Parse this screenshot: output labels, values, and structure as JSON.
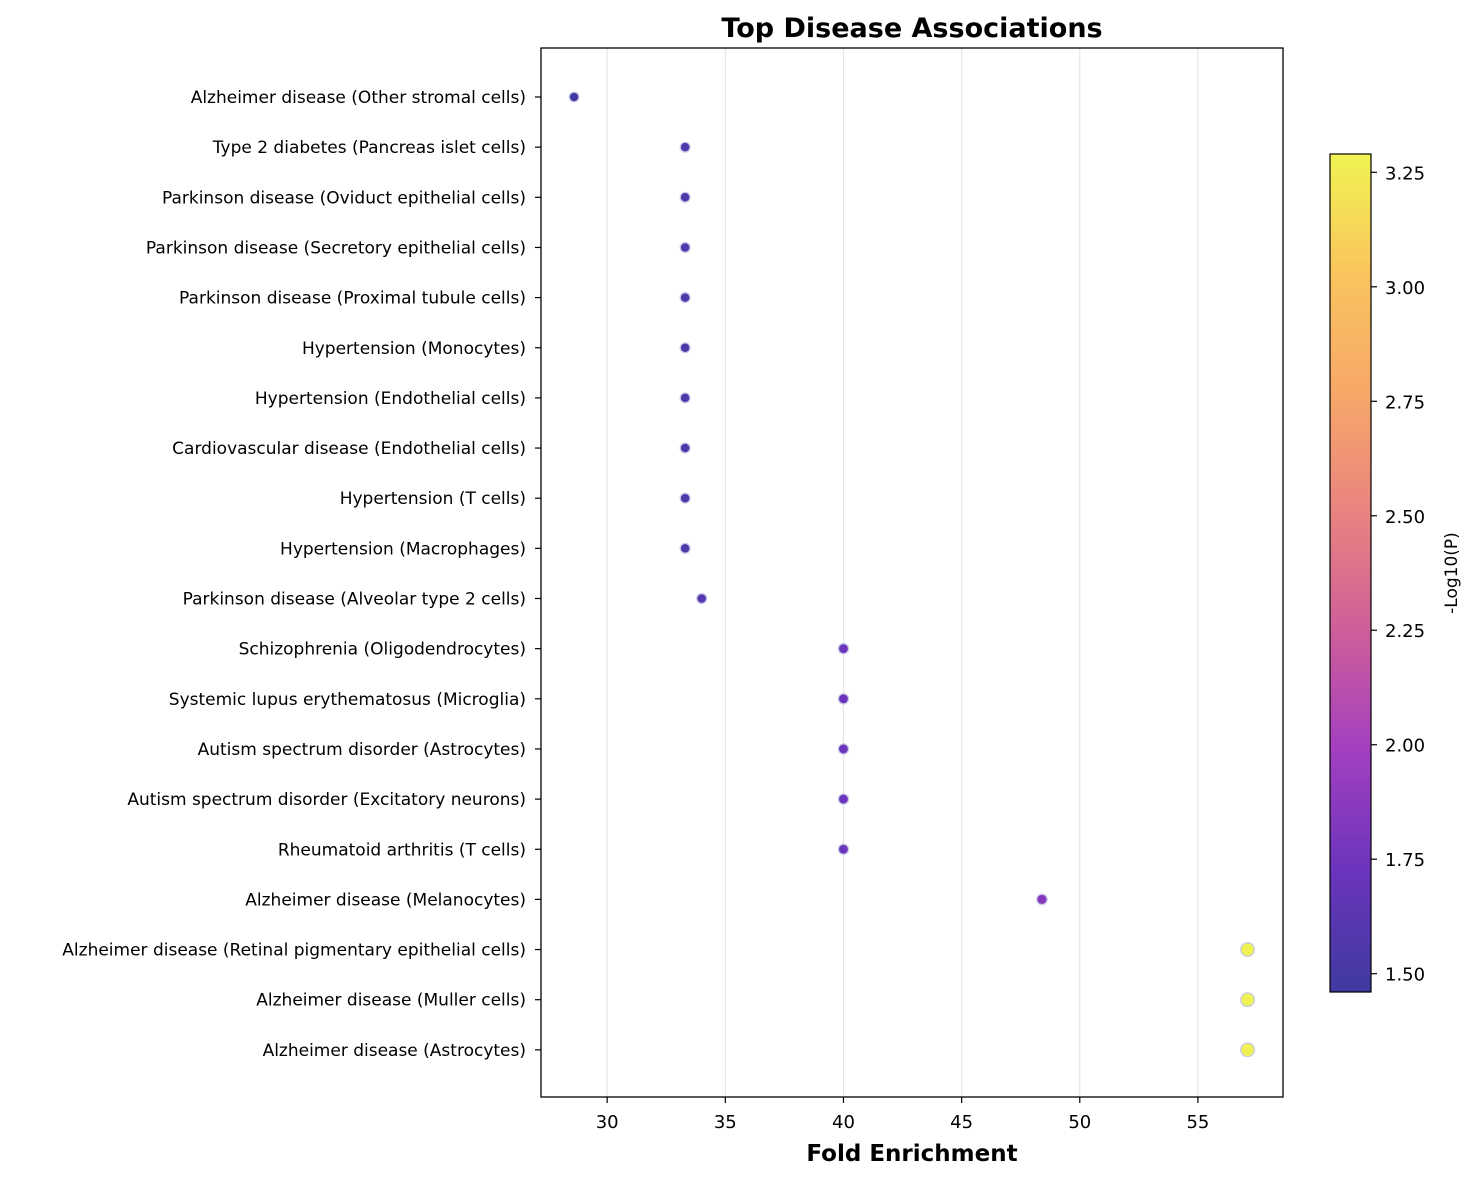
{
  "chart_data": {
    "type": "scatter",
    "title": "Top Disease Associations",
    "xlabel": "Fold Enrichment",
    "ylabel": "",
    "xlim": [
      27.2,
      58.6
    ],
    "xticks": [
      30,
      35,
      40,
      45,
      50,
      55
    ],
    "grid": "vertical",
    "categories": [
      "Alzheimer disease (Other stromal cells)",
      "Type 2 diabetes (Pancreas islet cells)",
      "Parkinson disease (Oviduct epithelial cells)",
      "Parkinson disease (Secretory epithelial cells)",
      "Parkinson disease (Proximal tubule cells)",
      "Hypertension (Monocytes)",
      "Hypertension (Endothelial cells)",
      "Cardiovascular disease (Endothelial cells)",
      "Hypertension (T cells)",
      "Hypertension (Macrophages)",
      "Parkinson disease (Alveolar type 2 cells)",
      "Schizophrenia (Oligodendrocytes)",
      "Systemic lupus erythematosus (Microglia)",
      "Autism spectrum disorder (Astrocytes)",
      "Autism spectrum disorder (Excitatory neurons)",
      "Rheumatoid arthritis (T cells)",
      "Alzheimer disease (Melanocytes)",
      "Alzheimer disease (Retinal pigmentary epithelial cells)",
      "Alzheimer disease (Muller cells)",
      "Alzheimer disease (Astrocytes)"
    ],
    "x": [
      28.6,
      33.3,
      33.3,
      33.3,
      33.3,
      33.3,
      33.3,
      33.3,
      33.3,
      33.3,
      34.0,
      40.0,
      40.0,
      40.0,
      40.0,
      40.0,
      48.4,
      57.1,
      57.1,
      57.1
    ],
    "neg_log10_p": [
      1.47,
      1.55,
      1.55,
      1.55,
      1.55,
      1.55,
      1.55,
      1.55,
      1.55,
      1.55,
      1.6,
      1.72,
      1.72,
      1.72,
      1.72,
      1.72,
      1.85,
      3.28,
      3.28,
      3.28
    ],
    "colorbar": {
      "label": "-Log10(P)",
      "range": [
        1.46,
        3.29
      ],
      "ticks": [
        "1.50",
        "1.75",
        "2.00",
        "2.25",
        "2.50",
        "2.75",
        "3.00",
        "3.25"
      ],
      "colormap": "plasma",
      "colors": [
        "#3f3aa0",
        "#6a34bc",
        "#a23fc1",
        "#cd5e9a",
        "#e88380",
        "#f7a869",
        "#fac45d",
        "#f0f453"
      ]
    }
  }
}
